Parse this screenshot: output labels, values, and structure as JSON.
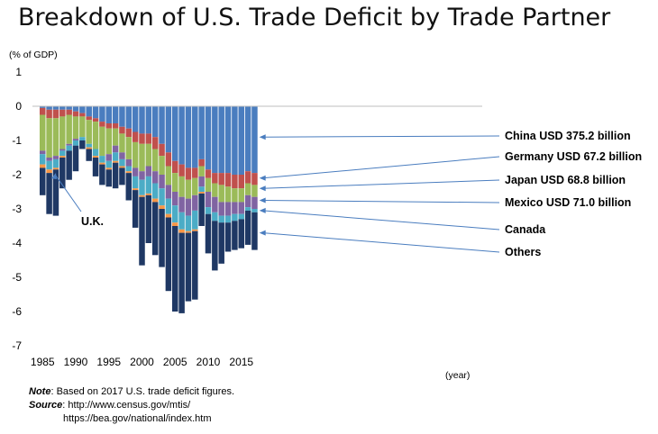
{
  "chart_data": {
    "type": "bar",
    "stacked": true,
    "title": "Breakdown of U.S. Trade Deficit by Trade Partner",
    "ylabel": "(% of GDP)",
    "xlabel": "(year)",
    "ylim": [
      -7,
      1
    ],
    "yticks": [
      1,
      0,
      -1,
      -2,
      -3,
      -4,
      -5,
      -6,
      -7
    ],
    "xticks": [
      1985,
      1990,
      1995,
      2000,
      2005,
      2010,
      2015
    ],
    "x": [
      1985,
      1986,
      1987,
      1988,
      1989,
      1990,
      1991,
      1992,
      1993,
      1994,
      1995,
      1996,
      1997,
      1998,
      1999,
      2000,
      2001,
      2002,
      2003,
      2004,
      2005,
      2006,
      2007,
      2008,
      2009,
      2010,
      2011,
      2012,
      2013,
      2014,
      2015,
      2016,
      2017
    ],
    "grid": false,
    "series": [
      {
        "name": "China",
        "color": "#4a7dbf",
        "values": [
          -0.05,
          -0.1,
          -0.1,
          -0.1,
          -0.1,
          -0.15,
          -0.2,
          -0.3,
          -0.35,
          -0.45,
          -0.5,
          -0.5,
          -0.6,
          -0.65,
          -0.75,
          -0.8,
          -0.8,
          -0.9,
          -1.1,
          -1.35,
          -1.6,
          -1.7,
          -1.8,
          -1.8,
          -1.55,
          -1.85,
          -1.95,
          -1.95,
          -1.95,
          -2.0,
          -2.0,
          -1.9,
          -1.95
        ]
      },
      {
        "name": "Germany",
        "color": "#c0504d",
        "values": [
          -0.2,
          -0.25,
          -0.25,
          -0.2,
          -0.15,
          -0.15,
          -0.1,
          -0.1,
          -0.1,
          -0.15,
          -0.15,
          -0.15,
          -0.2,
          -0.25,
          -0.3,
          -0.3,
          -0.3,
          -0.35,
          -0.35,
          -0.4,
          -0.35,
          -0.35,
          -0.35,
          -0.3,
          -0.2,
          -0.25,
          -0.3,
          -0.35,
          -0.4,
          -0.4,
          -0.4,
          -0.35,
          -0.35
        ]
      },
      {
        "name": "Japan",
        "color": "#9bbb59",
        "values": [
          -1.05,
          -1.15,
          -1.1,
          -0.95,
          -0.85,
          -0.65,
          -0.6,
          -0.7,
          -0.8,
          -0.85,
          -0.75,
          -0.5,
          -0.55,
          -0.65,
          -0.75,
          -0.8,
          -0.65,
          -0.65,
          -0.55,
          -0.55,
          -0.55,
          -0.6,
          -0.55,
          -0.5,
          -0.3,
          -0.4,
          -0.4,
          -0.5,
          -0.45,
          -0.4,
          -0.4,
          -0.35,
          -0.35
        ]
      },
      {
        "name": "Mexico",
        "color": "#8064a2",
        "values": [
          -0.1,
          -0.1,
          -0.1,
          -0.05,
          -0.05,
          -0.05,
          0,
          0,
          0,
          0,
          -0.2,
          -0.2,
          -0.2,
          -0.2,
          -0.25,
          -0.25,
          -0.3,
          -0.35,
          -0.4,
          -0.4,
          -0.4,
          -0.45,
          -0.5,
          -0.45,
          -0.3,
          -0.45,
          -0.45,
          -0.4,
          -0.4,
          -0.35,
          -0.35,
          -0.35,
          -0.35
        ]
      },
      {
        "name": "Canada",
        "color": "#4bacc6",
        "values": [
          -0.3,
          -0.25,
          -0.25,
          -0.15,
          -0.15,
          -0.15,
          -0.1,
          -0.1,
          -0.2,
          -0.2,
          -0.2,
          -0.25,
          -0.2,
          -0.15,
          -0.35,
          -0.45,
          -0.5,
          -0.45,
          -0.5,
          -0.45,
          -0.5,
          -0.5,
          -0.45,
          -0.55,
          -0.15,
          -0.2,
          -0.25,
          -0.2,
          -0.2,
          -0.2,
          -0.15,
          -0.1,
          -0.1
        ]
      },
      {
        "name": "U.K.",
        "color": "#f79646",
        "values": [
          -0.1,
          -0.1,
          -0.05,
          -0.05,
          0,
          0,
          0,
          -0.05,
          -0.05,
          -0.05,
          -0.05,
          -0.05,
          -0.05,
          -0.05,
          -0.05,
          -0.05,
          -0.05,
          -0.1,
          -0.1,
          -0.1,
          -0.1,
          -0.1,
          -0.05,
          -0.05,
          -0.05,
          0,
          0,
          0,
          0,
          0,
          0,
          0,
          0
        ]
      },
      {
        "name": "Others",
        "color": "#1f3864",
        "values": [
          -0.8,
          -1.2,
          -1.35,
          -0.9,
          -0.85,
          -0.75,
          -0.25,
          -0.35,
          -0.55,
          -0.6,
          -0.5,
          -0.75,
          -0.5,
          -0.8,
          -1.1,
          -2.0,
          -1.4,
          -1.55,
          -1.7,
          -2.15,
          -2.5,
          -2.35,
          -2.0,
          -2.0,
          -0.95,
          -1.15,
          -1.45,
          -1.2,
          -0.85,
          -0.85,
          -0.85,
          -1.0,
          -1.1
        ]
      }
    ],
    "annotations": [
      {
        "label": "China USD 375.2 billion"
      },
      {
        "label": "Germany USD 67.2 billion"
      },
      {
        "label": "Japan USD 68.8 billion"
      },
      {
        "label": "Mexico USD 71.0 billion"
      },
      {
        "label": "Canada"
      },
      {
        "label": "Others"
      },
      {
        "label": "U.K."
      }
    ]
  },
  "notes": {
    "note_label": "Note",
    "note_text": ": Based on 2017 U.S. trade deficit figures.",
    "source_label": "Source",
    "source_text": ": http://www.census.gov/mtis/",
    "source_url2": "https://bea.gov/national/index.htm"
  }
}
